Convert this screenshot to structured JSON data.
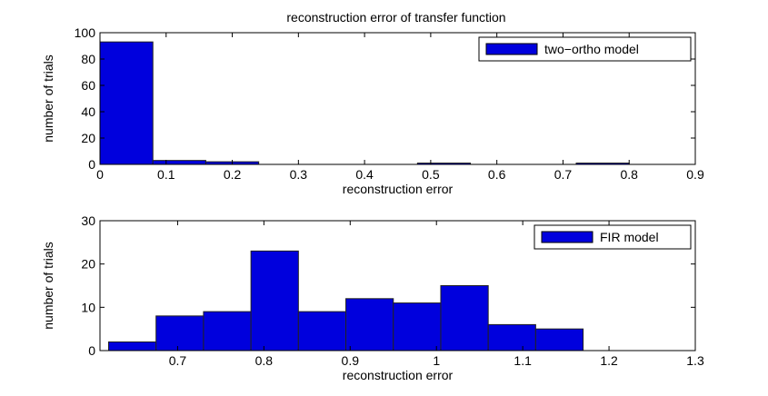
{
  "chart_data": [
    {
      "type": "bar",
      "title": "reconstruction error of transfer function",
      "xlabel": "reconstruction error",
      "ylabel": "number of trials",
      "xlim": [
        0,
        0.9
      ],
      "ylim": [
        0,
        100
      ],
      "xticks": [
        0,
        0.1,
        0.2,
        0.3,
        0.4,
        0.5,
        0.6,
        0.7,
        0.8,
        0.9
      ],
      "xtick_labels": [
        "0",
        "0.1",
        "0.2",
        "0.3",
        "0.4",
        "0.5",
        "0.6",
        "0.7",
        "0.8",
        "0.9"
      ],
      "yticks": [
        0,
        20,
        40,
        60,
        80,
        100
      ],
      "ytick_labels": [
        "0",
        "20",
        "40",
        "60",
        "80",
        "100"
      ],
      "bins": [
        {
          "x0": 0.0,
          "x1": 0.08,
          "value": 93
        },
        {
          "x0": 0.08,
          "x1": 0.16,
          "value": 3
        },
        {
          "x0": 0.16,
          "x1": 0.24,
          "value": 2
        },
        {
          "x0": 0.24,
          "x1": 0.32,
          "value": 0
        },
        {
          "x0": 0.32,
          "x1": 0.4,
          "value": 0
        },
        {
          "x0": 0.4,
          "x1": 0.48,
          "value": 0
        },
        {
          "x0": 0.48,
          "x1": 0.56,
          "value": 1
        },
        {
          "x0": 0.56,
          "x1": 0.64,
          "value": 0
        },
        {
          "x0": 0.64,
          "x1": 0.72,
          "value": 0
        },
        {
          "x0": 0.72,
          "x1": 0.8,
          "value": 1
        }
      ],
      "legend": {
        "label": "two−ortho model",
        "position": "top-right"
      },
      "grid": false,
      "colors": {
        "bar": "#0000dd",
        "edge": "#222222"
      }
    },
    {
      "type": "bar",
      "title": "",
      "xlabel": "reconstruction error",
      "ylabel": "number of trials",
      "xlim": [
        0.61,
        1.3
      ],
      "ylim": [
        0,
        30
      ],
      "xticks": [
        0.7,
        0.8,
        0.9,
        1.0,
        1.1,
        1.2,
        1.3
      ],
      "xtick_labels": [
        "0.7",
        "0.8",
        "0.9",
        "1",
        "1.1",
        "1.2",
        "1.3"
      ],
      "yticks": [
        0,
        10,
        20,
        30
      ],
      "ytick_labels": [
        "0",
        "10",
        "20",
        "30"
      ],
      "bins": [
        {
          "x0": 0.62,
          "x1": 0.675,
          "value": 2
        },
        {
          "x0": 0.675,
          "x1": 0.73,
          "value": 8
        },
        {
          "x0": 0.73,
          "x1": 0.785,
          "value": 9
        },
        {
          "x0": 0.785,
          "x1": 0.84,
          "value": 23
        },
        {
          "x0": 0.84,
          "x1": 0.895,
          "value": 9
        },
        {
          "x0": 0.895,
          "x1": 0.95,
          "value": 12
        },
        {
          "x0": 0.95,
          "x1": 1.005,
          "value": 11
        },
        {
          "x0": 1.005,
          "x1": 1.06,
          "value": 15
        },
        {
          "x0": 1.06,
          "x1": 1.115,
          "value": 6
        },
        {
          "x0": 1.115,
          "x1": 1.17,
          "value": 5
        }
      ],
      "legend": {
        "label": "FIR model",
        "position": "top-right"
      },
      "grid": false,
      "colors": {
        "bar": "#0000dd",
        "edge": "#222222"
      }
    }
  ]
}
